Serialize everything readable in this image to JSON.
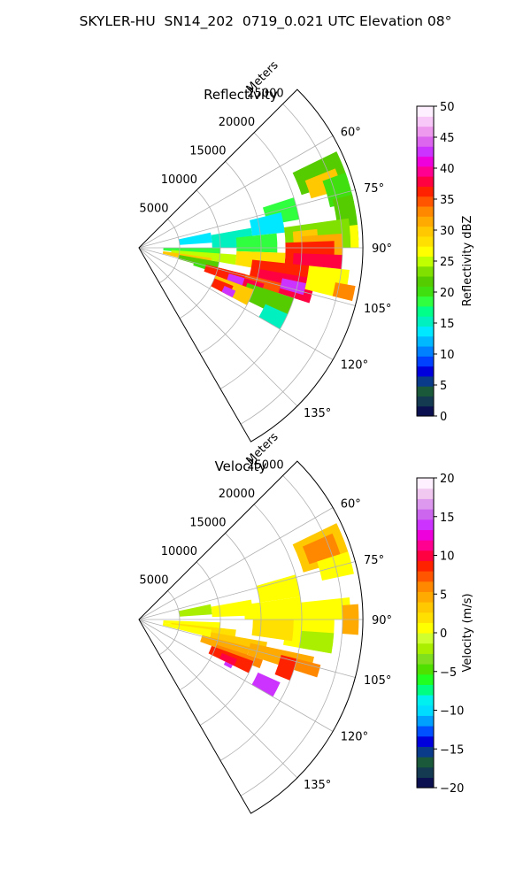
{
  "title": "SKYLER-HU  SN14_202  0719_0.021 UTC Elevation 08°",
  "chart_data": [
    {
      "type": "heatmap",
      "subtype": "polar-sector-ppi",
      "title": "Reflectivity",
      "radial_axis_label": "Meters",
      "radial_ticks": [
        "5000",
        "10000",
        "15000",
        "20000",
        "25000"
      ],
      "radial_range": [
        0,
        27500
      ],
      "azimuth_range_deg": [
        45,
        150
      ],
      "azimuth_ticks": [
        "60°",
        "75°",
        "90°",
        "105°",
        "120°",
        "135°"
      ],
      "grid": true,
      "colorbar": {
        "label": "Reflectivity dBZ",
        "range": [
          0,
          50
        ],
        "ticks": [
          "0",
          "5",
          "10",
          "15",
          "20",
          "25",
          "30",
          "35",
          "40",
          "45",
          "50"
        ],
        "colors": [
          "#0a1050",
          "#133a50",
          "#1a5a3a",
          "#0a3a8a",
          "#0000dd",
          "#0040ff",
          "#0080ff",
          "#00b8ff",
          "#00e8ff",
          "#00f0c0",
          "#00ff88",
          "#30ff40",
          "#40e010",
          "#55cc00",
          "#80e000",
          "#c0ff00",
          "#ffff00",
          "#ffe000",
          "#ffc800",
          "#ffaa00",
          "#ff8800",
          "#ff5500",
          "#ff2200",
          "#ff0040",
          "#ff0090",
          "#ee00dd",
          "#cc33ff",
          "#dd66ee",
          "#ee99ee",
          "#f8c8f8",
          "#fff0ff"
        ]
      },
      "cells": [
        {
          "az": [
            64,
            72
          ],
          "r": [
            21000,
            27000
          ],
          "v": 22
        },
        {
          "az": [
            68,
            74
          ],
          "r": [
            22000,
            26000
          ],
          "v": 30
        },
        {
          "az": [
            70,
            78
          ],
          "r": [
            24000,
            27000
          ],
          "v": 20
        },
        {
          "az": [
            76,
            88
          ],
          "r": [
            24500,
            27000
          ],
          "v": 22
        },
        {
          "az": [
            84,
            90
          ],
          "r": [
            25000,
            27000
          ],
          "v": 27
        },
        {
          "az": [
            72,
            80
          ],
          "r": [
            16000,
            20000
          ],
          "v": 18
        },
        {
          "az": [
            76,
            84
          ],
          "r": [
            14000,
            18000
          ],
          "v": 13
        },
        {
          "az": [
            78,
            86
          ],
          "r": [
            5000,
            9000
          ],
          "v": 13
        },
        {
          "az": [
            80,
            90
          ],
          "r": [
            9000,
            14000
          ],
          "v": 16
        },
        {
          "az": [
            84,
            92
          ],
          "r": [
            12000,
            17000
          ],
          "v": 19
        },
        {
          "az": [
            82,
            90
          ],
          "r": [
            18000,
            26000
          ],
          "v": 24
        },
        {
          "az": [
            84,
            92
          ],
          "r": [
            19000,
            22000
          ],
          "v": 30
        },
        {
          "az": [
            86,
            94
          ],
          "r": [
            20000,
            25000
          ],
          "v": 32
        },
        {
          "az": [
            88,
            100
          ],
          "r": [
            18000,
            24000
          ],
          "v": 36
        },
        {
          "az": [
            92,
            102
          ],
          "r": [
            19000,
            25000
          ],
          "v": 38
        },
        {
          "az": [
            96,
            100
          ],
          "r": [
            22500,
            24500
          ],
          "v": 42
        },
        {
          "az": [
            92,
            100
          ],
          "r": [
            12000,
            18000
          ],
          "v": 28
        },
        {
          "az": [
            96,
            106
          ],
          "r": [
            14000,
            21000
          ],
          "v": 36
        },
        {
          "az": [
            100,
            108
          ],
          "r": [
            15000,
            22000
          ],
          "v": 38
        },
        {
          "az": [
            102,
            106
          ],
          "r": [
            18000,
            21000
          ],
          "v": 42
        },
        {
          "az": [
            90,
            96
          ],
          "r": [
            3000,
            10000
          ],
          "v": 19
        },
        {
          "az": [
            94,
            100
          ],
          "r": [
            4000,
            12000
          ],
          "v": 25
        },
        {
          "az": [
            98,
            104
          ],
          "r": [
            3000,
            9000
          ],
          "v": 30
        },
        {
          "az": [
            100,
            106
          ],
          "r": [
            5000,
            10000
          ],
          "v": 22
        },
        {
          "az": [
            104,
            108
          ],
          "r": [
            7000,
            11000
          ],
          "v": 20
        },
        {
          "az": [
            104,
            112
          ],
          "r": [
            11000,
            18000
          ],
          "v": 34
        },
        {
          "az": [
            106,
            112
          ],
          "r": [
            12000,
            16000
          ],
          "v": 38
        },
        {
          "az": [
            108,
            116
          ],
          "r": [
            14000,
            20000
          ],
          "v": 22
        },
        {
          "az": [
            104,
            110
          ],
          "r": [
            8500,
            13500
          ],
          "v": 36
        },
        {
          "az": [
            106,
            110
          ],
          "r": [
            11500,
            13500
          ],
          "v": 42
        },
        {
          "az": [
            110,
            118
          ],
          "r": [
            10000,
            15000
          ],
          "v": 30
        },
        {
          "az": [
            112,
            118
          ],
          "r": [
            10000,
            12500
          ],
          "v": 36
        },
        {
          "az": [
            114,
            118
          ],
          "r": [
            11500,
            13000
          ],
          "v": 42
        },
        {
          "az": [
            114,
            120
          ],
          "r": [
            17000,
            20000
          ],
          "v": 16
        },
        {
          "az": [
            96,
            104
          ],
          "r": [
            21000,
            26000
          ],
          "v": 27
        },
        {
          "az": [
            100,
            104
          ],
          "r": [
            24500,
            27000
          ],
          "v": 33
        }
      ]
    },
    {
      "type": "heatmap",
      "subtype": "polar-sector-ppi",
      "title": "Velocity",
      "radial_axis_label": "Meters",
      "radial_ticks": [
        "5000",
        "10000",
        "15000",
        "20000",
        "25000"
      ],
      "radial_range": [
        0,
        27500
      ],
      "azimuth_range_deg": [
        45,
        150
      ],
      "azimuth_ticks": [
        "60°",
        "75°",
        "90°",
        "105°",
        "120°",
        "135°"
      ],
      "grid": true,
      "colorbar": {
        "label": "Velocity (m/s)",
        "range": [
          -20,
          20
        ],
        "ticks": [
          "−20",
          "−15",
          "−10",
          "−5",
          "0",
          "5",
          "10",
          "15",
          "20"
        ],
        "colors": [
          "#0a1050",
          "#133a50",
          "#1a5a3a",
          "#0a3a8a",
          "#0000dd",
          "#0050ff",
          "#00a0ff",
          "#00dcff",
          "#00f0f0",
          "#00ff80",
          "#20ff20",
          "#50e000",
          "#80e020",
          "#aaee00",
          "#d0ff30",
          "#ffff00",
          "#ffe000",
          "#ffc800",
          "#ffaa00",
          "#ff8800",
          "#ff5500",
          "#ff2200",
          "#ff0040",
          "#ff0090",
          "#ee00dd",
          "#cc33ff",
          "#cc66ee",
          "#dd99ee",
          "#f0c8f0",
          "#fff0ff"
        ]
      },
      "cells": [
        {
          "az": [
            64,
            74
          ],
          "r": [
            21000,
            27000
          ],
          "v": 3
        },
        {
          "az": [
            66,
            72
          ],
          "r": [
            22000,
            26000
          ],
          "v": 6
        },
        {
          "az": [
            72,
            78
          ],
          "r": [
            23000,
            27000
          ],
          "v": 1
        },
        {
          "az": [
            74,
            82
          ],
          "r": [
            15000,
            20000
          ],
          "v": 1
        },
        {
          "az": [
            78,
            86
          ],
          "r": [
            5000,
            9000
          ],
          "v": -2
        },
        {
          "az": [
            80,
            88
          ],
          "r": [
            9000,
            14000
          ],
          "v": 0
        },
        {
          "az": [
            82,
            90
          ],
          "r": [
            13000,
            20000
          ],
          "v": 1
        },
        {
          "az": [
            84,
            90
          ],
          "r": [
            20000,
            26000
          ],
          "v": 1
        },
        {
          "az": [
            86,
            94
          ],
          "r": [
            25000,
            27000
          ],
          "v": 4
        },
        {
          "az": [
            88,
            100
          ],
          "r": [
            18000,
            24000
          ],
          "v": 1
        },
        {
          "az": [
            90,
            98
          ],
          "r": [
            14000,
            19000
          ],
          "v": 2
        },
        {
          "az": [
            94,
            100
          ],
          "r": [
            20000,
            24000
          ],
          "v": -2
        },
        {
          "az": [
            92,
            98
          ],
          "r": [
            3000,
            10000
          ],
          "v": 1
        },
        {
          "az": [
            96,
            102
          ],
          "r": [
            4000,
            12000
          ],
          "v": 2
        },
        {
          "az": [
            98,
            104
          ],
          "r": [
            3000,
            9000
          ],
          "v": 1
        },
        {
          "az": [
            100,
            106
          ],
          "r": [
            9000,
            16000
          ],
          "v": 3
        },
        {
          "az": [
            102,
            108
          ],
          "r": [
            14000,
            22000
          ],
          "v": 4
        },
        {
          "az": [
            104,
            108
          ],
          "r": [
            19000,
            23000
          ],
          "v": 6
        },
        {
          "az": [
            104,
            110
          ],
          "r": [
            8000,
            14000
          ],
          "v": 4
        },
        {
          "az": [
            108,
            112
          ],
          "r": [
            10000,
            16000
          ],
          "v": 6
        },
        {
          "az": [
            110,
            116
          ],
          "r": [
            9500,
            15000
          ],
          "v": 8
        },
        {
          "az": [
            112,
            116
          ],
          "r": [
            11000,
            13000
          ],
          "v": 10
        },
        {
          "az": [
            114,
            120
          ],
          "r": [
            16000,
            19000
          ],
          "v": 14
        },
        {
          "az": [
            116,
            118
          ],
          "r": [
            11800,
            12800
          ],
          "v": 14
        },
        {
          "az": [
            104,
            112
          ],
          "r": [
            18000,
            20000
          ],
          "v": 9
        }
      ]
    }
  ]
}
